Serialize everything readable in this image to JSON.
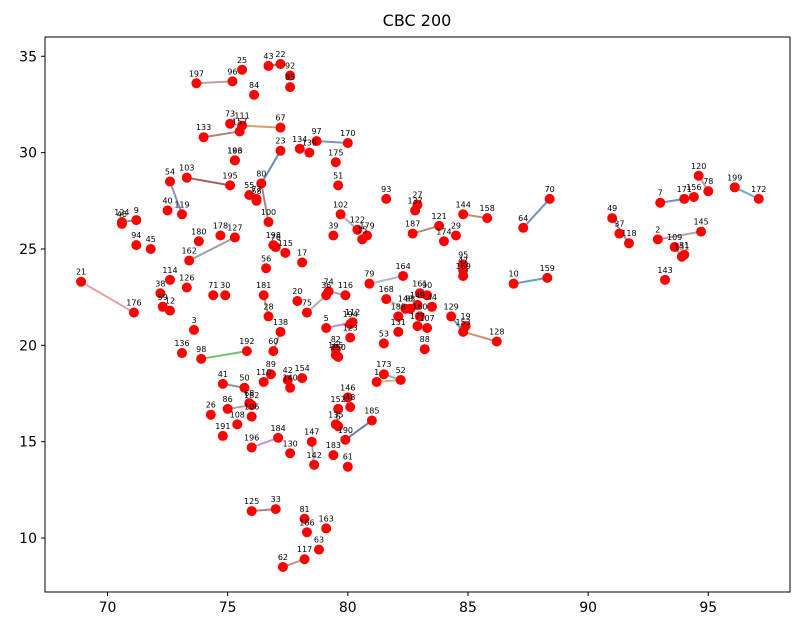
{
  "chart_data": {
    "type": "scatter",
    "title": "CBC 200",
    "xlabel": "",
    "ylabel": "",
    "xlim": [
      67.4,
      98.4
    ],
    "ylim": [
      7.2,
      36.0
    ],
    "xticks": [
      70,
      75,
      80,
      85,
      90,
      95
    ],
    "yticks": [
      10,
      15,
      20,
      25,
      30,
      35
    ],
    "grid": false,
    "point_color": "#ff0000",
    "points": [
      {
        "label": "1",
        "x": 81.2,
        "y": 18.1
      },
      {
        "label": "2",
        "x": 92.9,
        "y": 25.5
      },
      {
        "label": "3",
        "x": 73.6,
        "y": 20.8
      },
      {
        "label": "5",
        "x": 79.1,
        "y": 20.9
      },
      {
        "label": "6",
        "x": 79.6,
        "y": 15.8
      },
      {
        "label": "7",
        "x": 93.0,
        "y": 27.4
      },
      {
        "label": "9",
        "x": 71.2,
        "y": 26.5
      },
      {
        "label": "10",
        "x": 86.9,
        "y": 23.2
      },
      {
        "label": "12",
        "x": 72.6,
        "y": 21.8
      },
      {
        "label": "15",
        "x": 80.6,
        "y": 25.5
      },
      {
        "label": "17",
        "x": 78.1,
        "y": 24.3
      },
      {
        "label": "19",
        "x": 84.9,
        "y": 21.0
      },
      {
        "label": "20",
        "x": 77.9,
        "y": 22.3
      },
      {
        "label": "21",
        "x": 68.9,
        "y": 23.3
      },
      {
        "label": "22",
        "x": 77.2,
        "y": 34.6
      },
      {
        "label": "23",
        "x": 77.2,
        "y": 30.1
      },
      {
        "label": "25",
        "x": 75.6,
        "y": 34.3
      },
      {
        "label": "26",
        "x": 74.3,
        "y": 16.4
      },
      {
        "label": "27",
        "x": 82.9,
        "y": 27.3
      },
      {
        "label": "28",
        "x": 76.7,
        "y": 21.5
      },
      {
        "label": "29",
        "x": 84.5,
        "y": 25.7
      },
      {
        "label": "30",
        "x": 74.9,
        "y": 22.6
      },
      {
        "label": "31",
        "x": 94.0,
        "y": 24.7
      },
      {
        "label": "33",
        "x": 77.0,
        "y": 11.5
      },
      {
        "label": "36",
        "x": 79.1,
        "y": 22.6
      },
      {
        "label": "37",
        "x": 91.3,
        "y": 25.8
      },
      {
        "label": "38",
        "x": 72.2,
        "y": 22.7
      },
      {
        "label": "39",
        "x": 79.4,
        "y": 25.7
      },
      {
        "label": "40",
        "x": 72.5,
        "y": 27.0
      },
      {
        "label": "41",
        "x": 74.8,
        "y": 18.0
      },
      {
        "label": "42",
        "x": 77.5,
        "y": 18.2
      },
      {
        "label": "43",
        "x": 76.7,
        "y": 34.5
      },
      {
        "label": "44",
        "x": 83.5,
        "y": 22.0
      },
      {
        "label": "45",
        "x": 71.8,
        "y": 25.0
      },
      {
        "label": "46",
        "x": 70.6,
        "y": 26.3
      },
      {
        "label": "47",
        "x": 84.8,
        "y": 23.9
      },
      {
        "label": "48",
        "x": 80.1,
        "y": 16.8
      },
      {
        "label": "49",
        "x": 91.0,
        "y": 26.6
      },
      {
        "label": "50",
        "x": 75.7,
        "y": 17.8
      },
      {
        "label": "51",
        "x": 79.6,
        "y": 28.3
      },
      {
        "label": "52",
        "x": 82.2,
        "y": 18.2
      },
      {
        "label": "53",
        "x": 81.5,
        "y": 20.1
      },
      {
        "label": "54",
        "x": 72.6,
        "y": 28.5
      },
      {
        "label": "55",
        "x": 75.9,
        "y": 27.8
      },
      {
        "label": "56",
        "x": 76.6,
        "y": 24.0
      },
      {
        "label": "58",
        "x": 76.2,
        "y": 27.5
      },
      {
        "label": "59",
        "x": 72.3,
        "y": 22.0
      },
      {
        "label": "60",
        "x": 76.9,
        "y": 19.7
      },
      {
        "label": "61",
        "x": 80.0,
        "y": 13.7
      },
      {
        "label": "62",
        "x": 77.3,
        "y": 8.5
      },
      {
        "label": "63",
        "x": 78.8,
        "y": 9.4
      },
      {
        "label": "64",
        "x": 87.3,
        "y": 26.1
      },
      {
        "label": "67",
        "x": 77.2,
        "y": 31.3
      },
      {
        "label": "68",
        "x": 75.9,
        "y": 17.0
      },
      {
        "label": "70",
        "x": 88.4,
        "y": 27.6
      },
      {
        "label": "71",
        "x": 74.4,
        "y": 22.6
      },
      {
        "label": "73",
        "x": 75.1,
        "y": 31.5
      },
      {
        "label": "74",
        "x": 79.2,
        "y": 22.8
      },
      {
        "label": "75",
        "x": 78.3,
        "y": 21.7
      },
      {
        "label": "76",
        "x": 77.0,
        "y": 25.1
      },
      {
        "label": "77",
        "x": 76.2,
        "y": 27.6
      },
      {
        "label": "78",
        "x": 95.0,
        "y": 28.0
      },
      {
        "label": "79",
        "x": 80.9,
        "y": 23.2
      },
      {
        "label": "80",
        "x": 76.4,
        "y": 28.4
      },
      {
        "label": "81",
        "x": 78.2,
        "y": 11.0
      },
      {
        "label": "82",
        "x": 79.5,
        "y": 19.8
      },
      {
        "label": "83",
        "x": 82.6,
        "y": 21.9
      },
      {
        "label": "84",
        "x": 76.1,
        "y": 33.0
      },
      {
        "label": "85",
        "x": 77.6,
        "y": 33.4
      },
      {
        "label": "86",
        "x": 75.0,
        "y": 16.7
      },
      {
        "label": "88",
        "x": 83.2,
        "y": 19.8
      },
      {
        "label": "89",
        "x": 76.8,
        "y": 18.5
      },
      {
        "label": "90",
        "x": 83.3,
        "y": 22.6
      },
      {
        "label": "92",
        "x": 77.6,
        "y": 34.0
      },
      {
        "label": "93",
        "x": 81.6,
        "y": 27.6
      },
      {
        "label": "94",
        "x": 71.2,
        "y": 25.2
      },
      {
        "label": "95",
        "x": 84.8,
        "y": 24.2
      },
      {
        "label": "96",
        "x": 75.2,
        "y": 33.7
      },
      {
        "label": "97",
        "x": 78.7,
        "y": 30.6
      },
      {
        "label": "98",
        "x": 73.9,
        "y": 19.3
      },
      {
        "label": "100",
        "x": 76.7,
        "y": 26.4
      },
      {
        "label": "102",
        "x": 79.7,
        "y": 26.8
      },
      {
        "label": "103",
        "x": 73.3,
        "y": 28.7
      },
      {
        "label": "106",
        "x": 76.0,
        "y": 16.3
      },
      {
        "label": "107",
        "x": 83.3,
        "y": 20.9
      },
      {
        "label": "108",
        "x": 75.4,
        "y": 15.9
      },
      {
        "label": "109",
        "x": 93.6,
        "y": 25.1
      },
      {
        "label": "110",
        "x": 76.5,
        "y": 18.1
      },
      {
        "label": "111",
        "x": 75.6,
        "y": 31.4
      },
      {
        "label": "112",
        "x": 80.2,
        "y": 21.2
      },
      {
        "label": "114",
        "x": 72.6,
        "y": 23.4
      },
      {
        "label": "115",
        "x": 77.4,
        "y": 24.8
      },
      {
        "label": "116",
        "x": 79.9,
        "y": 22.6
      },
      {
        "label": "117",
        "x": 78.2,
        "y": 8.9
      },
      {
        "label": "118",
        "x": 91.7,
        "y": 25.3
      },
      {
        "label": "119",
        "x": 73.1,
        "y": 26.8
      },
      {
        "label": "120",
        "x": 94.6,
        "y": 28.8
      },
      {
        "label": "121",
        "x": 83.8,
        "y": 26.2
      },
      {
        "label": "122",
        "x": 80.4,
        "y": 26.0
      },
      {
        "label": "123",
        "x": 80.1,
        "y": 20.4
      },
      {
        "label": "124",
        "x": 70.6,
        "y": 26.4
      },
      {
        "label": "125",
        "x": 76.0,
        "y": 11.4
      },
      {
        "label": "126",
        "x": 73.3,
        "y": 23.0
      },
      {
        "label": "127",
        "x": 75.3,
        "y": 25.6
      },
      {
        "label": "128",
        "x": 86.2,
        "y": 20.2
      },
      {
        "label": "129",
        "x": 84.3,
        "y": 21.5
      },
      {
        "label": "130",
        "x": 77.6,
        "y": 14.4
      },
      {
        "label": "131",
        "x": 82.1,
        "y": 20.7
      },
      {
        "label": "133",
        "x": 74.0,
        "y": 30.8
      },
      {
        "label": "134",
        "x": 78.0,
        "y": 30.2
      },
      {
        "label": "135",
        "x": 79.5,
        "y": 15.9
      },
      {
        "label": "136",
        "x": 73.1,
        "y": 19.6
      },
      {
        "label": "137",
        "x": 82.8,
        "y": 27.0
      },
      {
        "label": "138",
        "x": 77.2,
        "y": 20.7
      },
      {
        "label": "139",
        "x": 78.4,
        "y": 30.0
      },
      {
        "label": "140",
        "x": 77.6,
        "y": 17.8
      },
      {
        "label": "142",
        "x": 78.6,
        "y": 13.8
      },
      {
        "label": "143",
        "x": 93.2,
        "y": 23.4
      },
      {
        "label": "144",
        "x": 84.8,
        "y": 26.8
      },
      {
        "label": "145",
        "x": 94.7,
        "y": 25.9
      },
      {
        "label": "146",
        "x": 80.0,
        "y": 17.3
      },
      {
        "label": "147",
        "x": 78.5,
        "y": 15.0
      },
      {
        "label": "148",
        "x": 82.4,
        "y": 21.9
      },
      {
        "label": "149",
        "x": 82.9,
        "y": 22.1
      },
      {
        "label": "150",
        "x": 79.6,
        "y": 19.4
      },
      {
        "label": "151",
        "x": 93.9,
        "y": 24.6
      },
      {
        "label": "152",
        "x": 79.6,
        "y": 16.7
      },
      {
        "label": "153",
        "x": 84.8,
        "y": 20.7
      },
      {
        "label": "154",
        "x": 78.1,
        "y": 18.3
      },
      {
        "label": "156",
        "x": 94.4,
        "y": 27.7
      },
      {
        "label": "157",
        "x": 75.5,
        "y": 31.1
      },
      {
        "label": "158",
        "x": 85.8,
        "y": 26.6
      },
      {
        "label": "159",
        "x": 88.3,
        "y": 23.5
      },
      {
        "label": "160",
        "x": 83.0,
        "y": 21.5
      },
      {
        "label": "161",
        "x": 83.0,
        "y": 22.7
      },
      {
        "label": "162",
        "x": 73.4,
        "y": 24.4
      },
      {
        "label": "163",
        "x": 79.1,
        "y": 10.5
      },
      {
        "label": "164",
        "x": 82.3,
        "y": 23.6
      },
      {
        "label": "165",
        "x": 79.5,
        "y": 19.5
      },
      {
        "label": "166",
        "x": 78.3,
        "y": 10.3
      },
      {
        "label": "168",
        "x": 81.6,
        "y": 22.4
      },
      {
        "label": "169",
        "x": 84.8,
        "y": 23.6
      },
      {
        "label": "170",
        "x": 80.0,
        "y": 30.5
      },
      {
        "label": "171",
        "x": 94.0,
        "y": 27.6
      },
      {
        "label": "172",
        "x": 97.1,
        "y": 27.6
      },
      {
        "label": "173",
        "x": 81.5,
        "y": 18.5
      },
      {
        "label": "174",
        "x": 84.0,
        "y": 25.4
      },
      {
        "label": "175",
        "x": 79.5,
        "y": 29.5
      },
      {
        "label": "176",
        "x": 71.1,
        "y": 21.7
      },
      {
        "label": "177",
        "x": 82.9,
        "y": 21.0
      },
      {
        "label": "178",
        "x": 74.7,
        "y": 25.7
      },
      {
        "label": "179",
        "x": 80.8,
        "y": 25.7
      },
      {
        "label": "180",
        "x": 73.8,
        "y": 25.4
      },
      {
        "label": "181",
        "x": 76.5,
        "y": 22.6
      },
      {
        "label": "182",
        "x": 76.0,
        "y": 16.9
      },
      {
        "label": "183",
        "x": 79.4,
        "y": 14.3
      },
      {
        "label": "184",
        "x": 77.1,
        "y": 15.2
      },
      {
        "label": "185",
        "x": 81.0,
        "y": 16.1
      },
      {
        "label": "186",
        "x": 75.3,
        "y": 29.6
      },
      {
        "label": "187",
        "x": 82.7,
        "y": 25.8
      },
      {
        "label": "188",
        "x": 82.1,
        "y": 21.5
      },
      {
        "label": "190",
        "x": 79.9,
        "y": 15.1
      },
      {
        "label": "191",
        "x": 74.8,
        "y": 15.3
      },
      {
        "label": "192",
        "x": 75.8,
        "y": 19.7
      },
      {
        "label": "193",
        "x": 75.3,
        "y": 29.6
      },
      {
        "label": "194",
        "x": 80.1,
        "y": 21.1
      },
      {
        "label": "195",
        "x": 75.1,
        "y": 28.3
      },
      {
        "label": "196",
        "x": 76.0,
        "y": 14.7
      },
      {
        "label": "197",
        "x": 73.7,
        "y": 33.6
      },
      {
        "label": "198",
        "x": 76.9,
        "y": 25.2
      },
      {
        "label": "199",
        "x": 96.1,
        "y": 28.2
      }
    ],
    "edges": [
      {
        "from": "21",
        "to": "176",
        "color": "#e8a0a0"
      },
      {
        "from": "124",
        "to": "46",
        "color": "#8a8ac8"
      },
      {
        "from": "9",
        "to": "124",
        "color": "#8a8ac8"
      },
      {
        "from": "197",
        "to": "96",
        "color": "#c0a0a0"
      },
      {
        "from": "43",
        "to": "22",
        "color": "#a08080"
      },
      {
        "from": "111",
        "to": "67",
        "color": "#d0a070"
      },
      {
        "from": "133",
        "to": "157",
        "color": "#b08080"
      },
      {
        "from": "103",
        "to": "195",
        "color": "#a06060"
      },
      {
        "from": "80",
        "to": "23",
        "color": "#6a8ab8"
      },
      {
        "from": "97",
        "to": "170",
        "color": "#7a90c0"
      },
      {
        "from": "98",
        "to": "192",
        "color": "#70c070"
      },
      {
        "from": "41",
        "to": "50",
        "color": "#909090"
      },
      {
        "from": "196",
        "to": "184",
        "color": "#d090d0"
      },
      {
        "from": "190",
        "to": "185",
        "color": "#6a80b0"
      },
      {
        "from": "125",
        "to": "33",
        "color": "#b08080"
      },
      {
        "from": "62",
        "to": "117",
        "color": "#c09090"
      },
      {
        "from": "164",
        "to": "79",
        "color": "#b0b0e0"
      },
      {
        "from": "10",
        "to": "159",
        "color": "#60a0d0"
      },
      {
        "from": "64",
        "to": "70",
        "color": "#7090c0"
      },
      {
        "from": "144",
        "to": "158",
        "color": "#c09070"
      },
      {
        "from": "121",
        "to": "187",
        "color": "#b09070"
      },
      {
        "from": "2",
        "to": "145",
        "color": "#c0a0a0"
      },
      {
        "from": "199",
        "to": "172",
        "color": "#60b0c0"
      },
      {
        "from": "7",
        "to": "171",
        "color": "#7090c0"
      },
      {
        "from": "129",
        "to": "153",
        "color": "#60a0c0"
      },
      {
        "from": "153",
        "to": "128",
        "color": "#d09070"
      },
      {
        "from": "173",
        "to": "52",
        "color": "#90b0c0"
      },
      {
        "from": "1",
        "to": "52",
        "color": "#c0c080"
      },
      {
        "from": "5",
        "to": "112",
        "color": "#d080d0"
      },
      {
        "from": "74",
        "to": "116",
        "color": "#b0a0c0"
      },
      {
        "from": "147",
        "to": "142",
        "color": "#90b0b0"
      },
      {
        "from": "100",
        "to": "80",
        "color": "#b08080"
      },
      {
        "from": "127",
        "to": "162",
        "color": "#a0a0a0"
      },
      {
        "from": "54",
        "to": "119",
        "color": "#9090c0"
      },
      {
        "from": "181",
        "to": "28",
        "color": "#c0a080"
      },
      {
        "from": "138",
        "to": "60",
        "color": "#a0a0a0"
      },
      {
        "from": "82",
        "to": "150",
        "color": "#b0b0b0"
      },
      {
        "from": "109",
        "to": "151",
        "color": "#70b0b0"
      },
      {
        "from": "134",
        "to": "139",
        "color": "#b0a0a0"
      },
      {
        "from": "120",
        "to": "78",
        "color": "#c0a0a0"
      },
      {
        "from": "95",
        "to": "169",
        "color": "#b0b0b0"
      },
      {
        "from": "137",
        "to": "27",
        "color": "#c09070"
      },
      {
        "from": "102",
        "to": "122",
        "color": "#b0b0b0"
      },
      {
        "from": "49",
        "to": "118",
        "color": "#9090c0"
      },
      {
        "from": "36",
        "to": "75",
        "color": "#b0b0b0"
      },
      {
        "from": "168",
        "to": "148",
        "color": "#c0c0a0"
      },
      {
        "from": "86",
        "to": "182",
        "color": "#b0a0a0"
      },
      {
        "from": "89",
        "to": "110",
        "color": "#a0a0a0"
      }
    ]
  }
}
